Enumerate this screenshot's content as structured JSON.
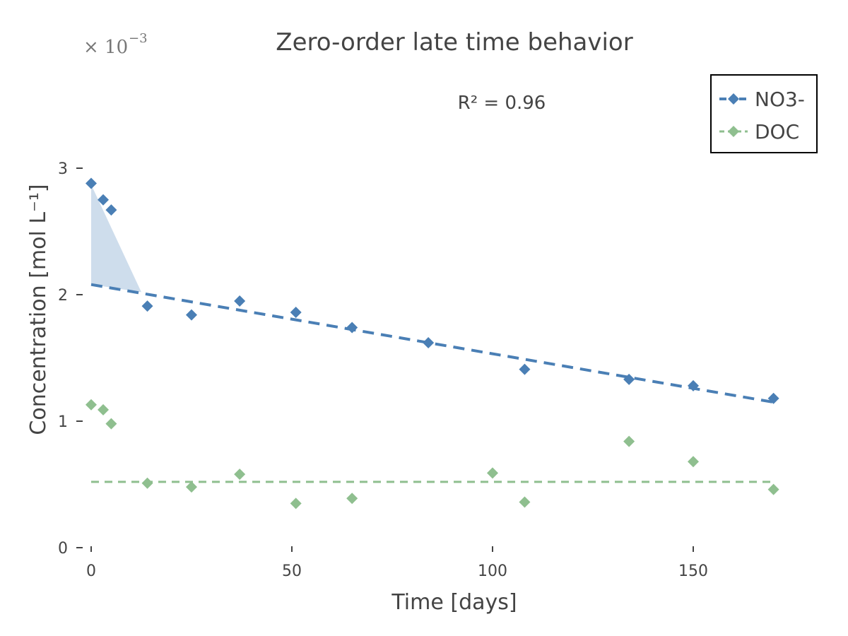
{
  "chart_data": {
    "type": "scatter",
    "title": "Zero-order late time behavior",
    "xlabel": "Time [days]",
    "ylabel": "Concentration [mol L⁻¹]",
    "y_multiplier": {
      "base": "× 10",
      "exponent": "−3"
    },
    "annotation": "R² = 0.96",
    "xlim": [
      0,
      175
    ],
    "ylim": [
      0,
      3.0
    ],
    "x_ticks": [
      0,
      50,
      100,
      150
    ],
    "y_ticks": [
      0,
      1,
      2,
      3
    ],
    "grid": false,
    "legend_position": "top-right",
    "series": [
      {
        "name": "NO3-",
        "color": "#4a7fb5",
        "marker": "diamond",
        "x": [
          0,
          3,
          5,
          14,
          25,
          37,
          51,
          65,
          84,
          108,
          134,
          150,
          170
        ],
        "y": [
          2.88,
          2.75,
          2.67,
          1.91,
          1.84,
          1.95,
          1.86,
          1.74,
          1.62,
          1.41,
          1.33,
          1.28,
          1.18
        ],
        "fit": {
          "style": "dashed",
          "x": [
            0,
            170
          ],
          "y": [
            2.08,
            1.15
          ]
        },
        "shaded_region": {
          "x_start": 0,
          "x_end": 12.5,
          "y_top_start": 2.87,
          "y_bottom_start": 2.08,
          "y_end": 2.02,
          "color": "#c9d9ea"
        }
      },
      {
        "name": "DOC",
        "color": "#8fbf8f",
        "marker": "diamond",
        "x": [
          0,
          3,
          5,
          14,
          25,
          37,
          51,
          65,
          100,
          108,
          134,
          150,
          170
        ],
        "y": [
          1.13,
          1.09,
          0.98,
          0.51,
          0.48,
          0.58,
          0.35,
          0.39,
          0.59,
          0.36,
          0.84,
          0.68,
          0.46
        ],
        "fit": {
          "style": "dashed",
          "x": [
            0,
            170
          ],
          "y": [
            0.52,
            0.52
          ]
        }
      }
    ]
  }
}
